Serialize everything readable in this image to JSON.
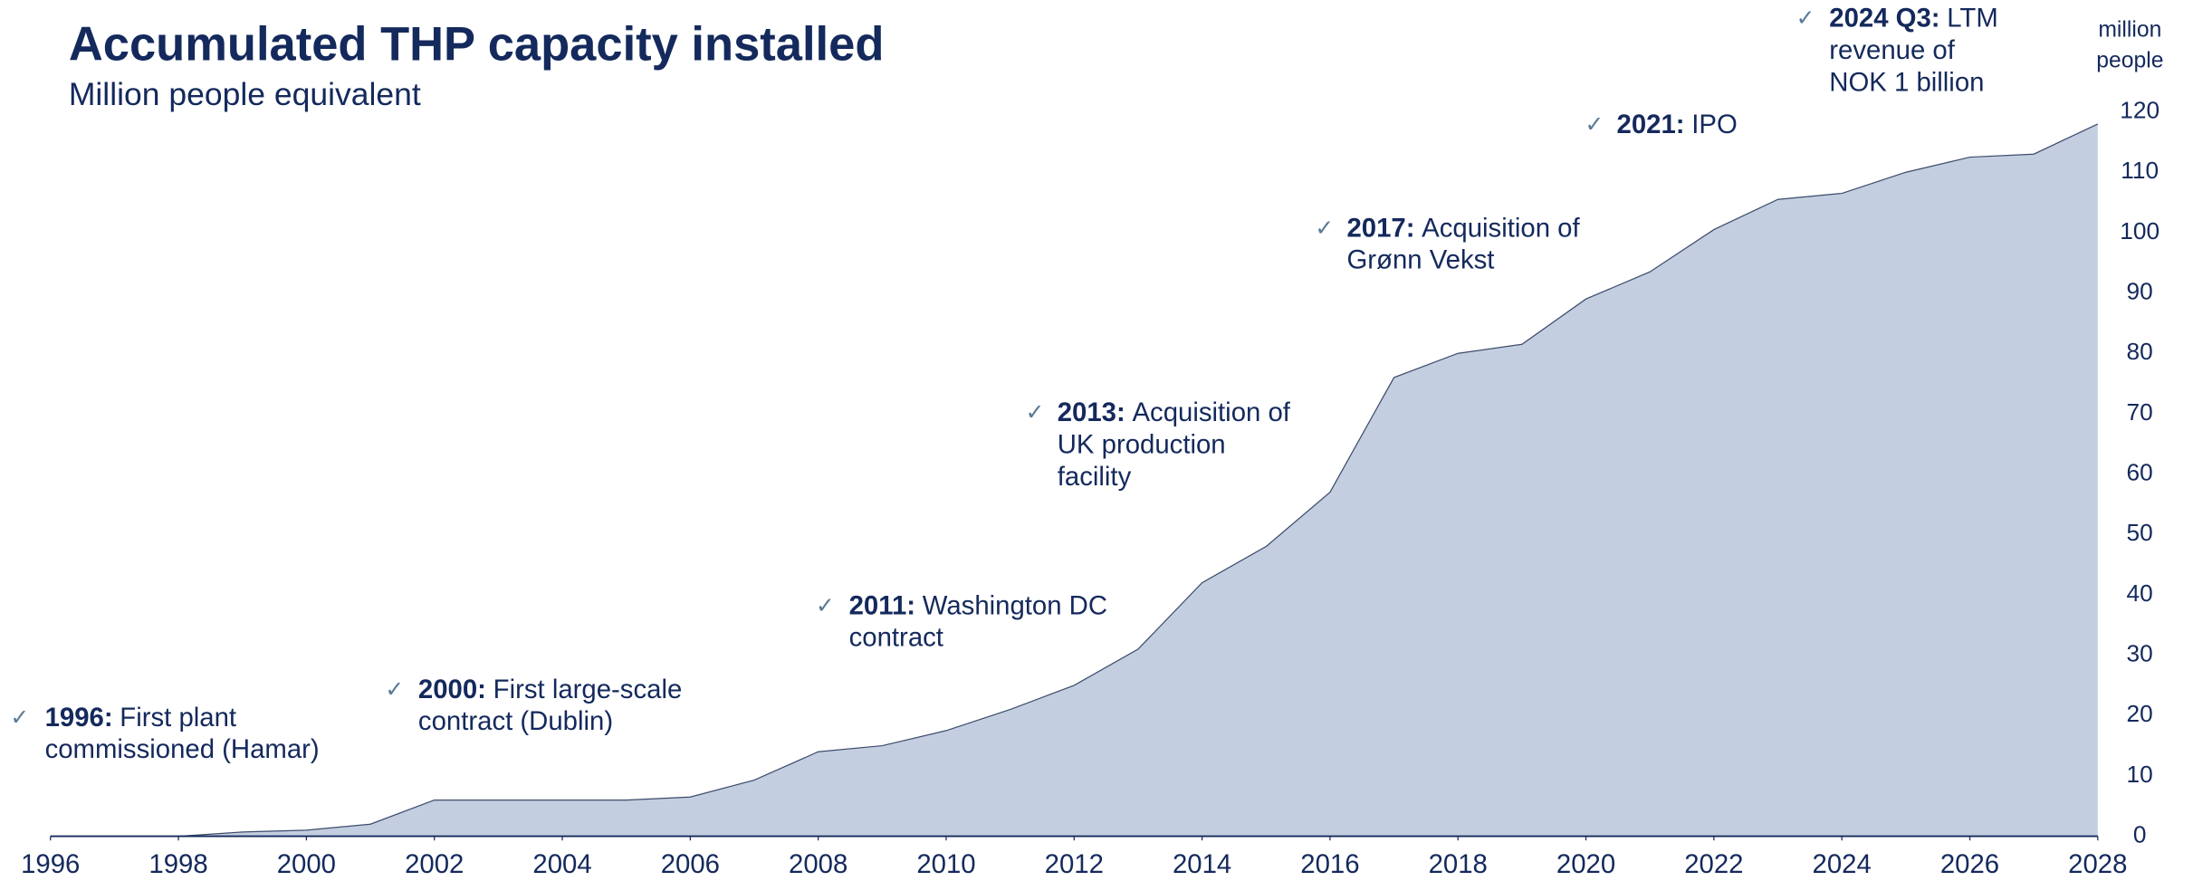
{
  "chart_data": {
    "type": "area",
    "title": "Accumulated THP capacity installed",
    "subtitle": "Million people equivalent",
    "ylabel": [
      "million",
      "people"
    ],
    "color": "#c3cee0",
    "line_color": "#3d4c6c",
    "x": [
      1996,
      1997,
      1998,
      1999,
      2000,
      2001,
      2002,
      2003,
      2004,
      2005,
      2006,
      2007,
      2008,
      2009,
      2010,
      2011,
      2012,
      2013,
      2014,
      2015,
      2016,
      2017,
      2018,
      2019,
      2020,
      2021,
      2022,
      2023,
      2024,
      2025,
      2026,
      2027,
      2028
    ],
    "values": [
      0,
      0,
      0,
      0.7,
      1,
      2,
      6,
      6,
      6,
      6,
      6.5,
      9.3,
      14,
      15,
      17.5,
      21,
      25,
      31,
      42,
      48,
      57,
      76,
      80,
      81.5,
      89,
      93.5,
      100.5,
      105.5,
      106.5,
      110,
      112.5,
      113,
      118
    ],
    "xlim": [
      1996,
      2028
    ],
    "xticks": [
      1996,
      1998,
      2000,
      2002,
      2004,
      2006,
      2008,
      2010,
      2012,
      2014,
      2016,
      2018,
      2020,
      2022,
      2024,
      2026,
      2028
    ],
    "ylim": [
      0,
      120
    ],
    "yticks": [
      0,
      10,
      20,
      30,
      40,
      50,
      60,
      70,
      80,
      90,
      100,
      110,
      120
    ],
    "annotations": [
      {
        "bold": "1996:",
        "lines": [
          "First plant",
          "commissioned (Hamar)"
        ]
      },
      {
        "bold": "2000:",
        "lines": [
          "First large-scale",
          "contract (Dublin)"
        ]
      },
      {
        "bold": "2011:",
        "lines": [
          "Washington DC",
          "contract"
        ]
      },
      {
        "bold": "2013:",
        "lines": [
          "Acquisition of",
          "UK production",
          "facility"
        ]
      },
      {
        "bold": "2017:",
        "lines": [
          "Acquisition of",
          "Grønn Vekst"
        ]
      },
      {
        "bold": "2021:",
        "lines": [
          "IPO"
        ]
      },
      {
        "bold": "2024 Q3:",
        "lines": [
          "LTM",
          "revenue of",
          "NOK 1 billion"
        ]
      }
    ]
  }
}
